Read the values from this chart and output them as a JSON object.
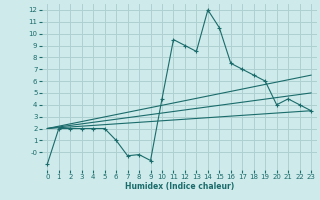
{
  "xlabel": "Humidex (Indice chaleur)",
  "bg_color": "#ceeaea",
  "grid_color": "#aed0d0",
  "line_color": "#1a6b6b",
  "series": [
    {
      "x": [
        0,
        1,
        2,
        3,
        4,
        5,
        6,
        7,
        8,
        9,
        10,
        11,
        12,
        13,
        14,
        15,
        16,
        17,
        18,
        19,
        20,
        21,
        22,
        23
      ],
      "y": [
        -1,
        2,
        2,
        2,
        2,
        2,
        1,
        -0.3,
        -0.2,
        -0.7,
        4.5,
        9.5,
        9,
        8.5,
        12,
        10.5,
        7.5,
        7,
        6.5,
        6,
        4,
        4.5,
        4,
        3.5
      ]
    },
    {
      "x": [
        0,
        23
      ],
      "y": [
        2,
        3.5
      ]
    },
    {
      "x": [
        0,
        23
      ],
      "y": [
        2,
        5
      ]
    },
    {
      "x": [
        0,
        23
      ],
      "y": [
        2,
        6.5
      ]
    }
  ],
  "xlim": [
    -0.5,
    23.5
  ],
  "ylim": [
    -1.5,
    12.5
  ],
  "yticks": [
    0,
    1,
    2,
    3,
    4,
    5,
    6,
    7,
    8,
    9,
    10,
    11,
    12
  ],
  "ytick_labels": [
    "-0",
    "1",
    "2",
    "3",
    "4",
    "5",
    "6",
    "7",
    "8",
    "9",
    "10",
    "11",
    "12"
  ],
  "xticks": [
    0,
    1,
    2,
    3,
    4,
    5,
    6,
    7,
    8,
    9,
    10,
    11,
    12,
    13,
    14,
    15,
    16,
    17,
    18,
    19,
    20,
    21,
    22,
    23
  ]
}
